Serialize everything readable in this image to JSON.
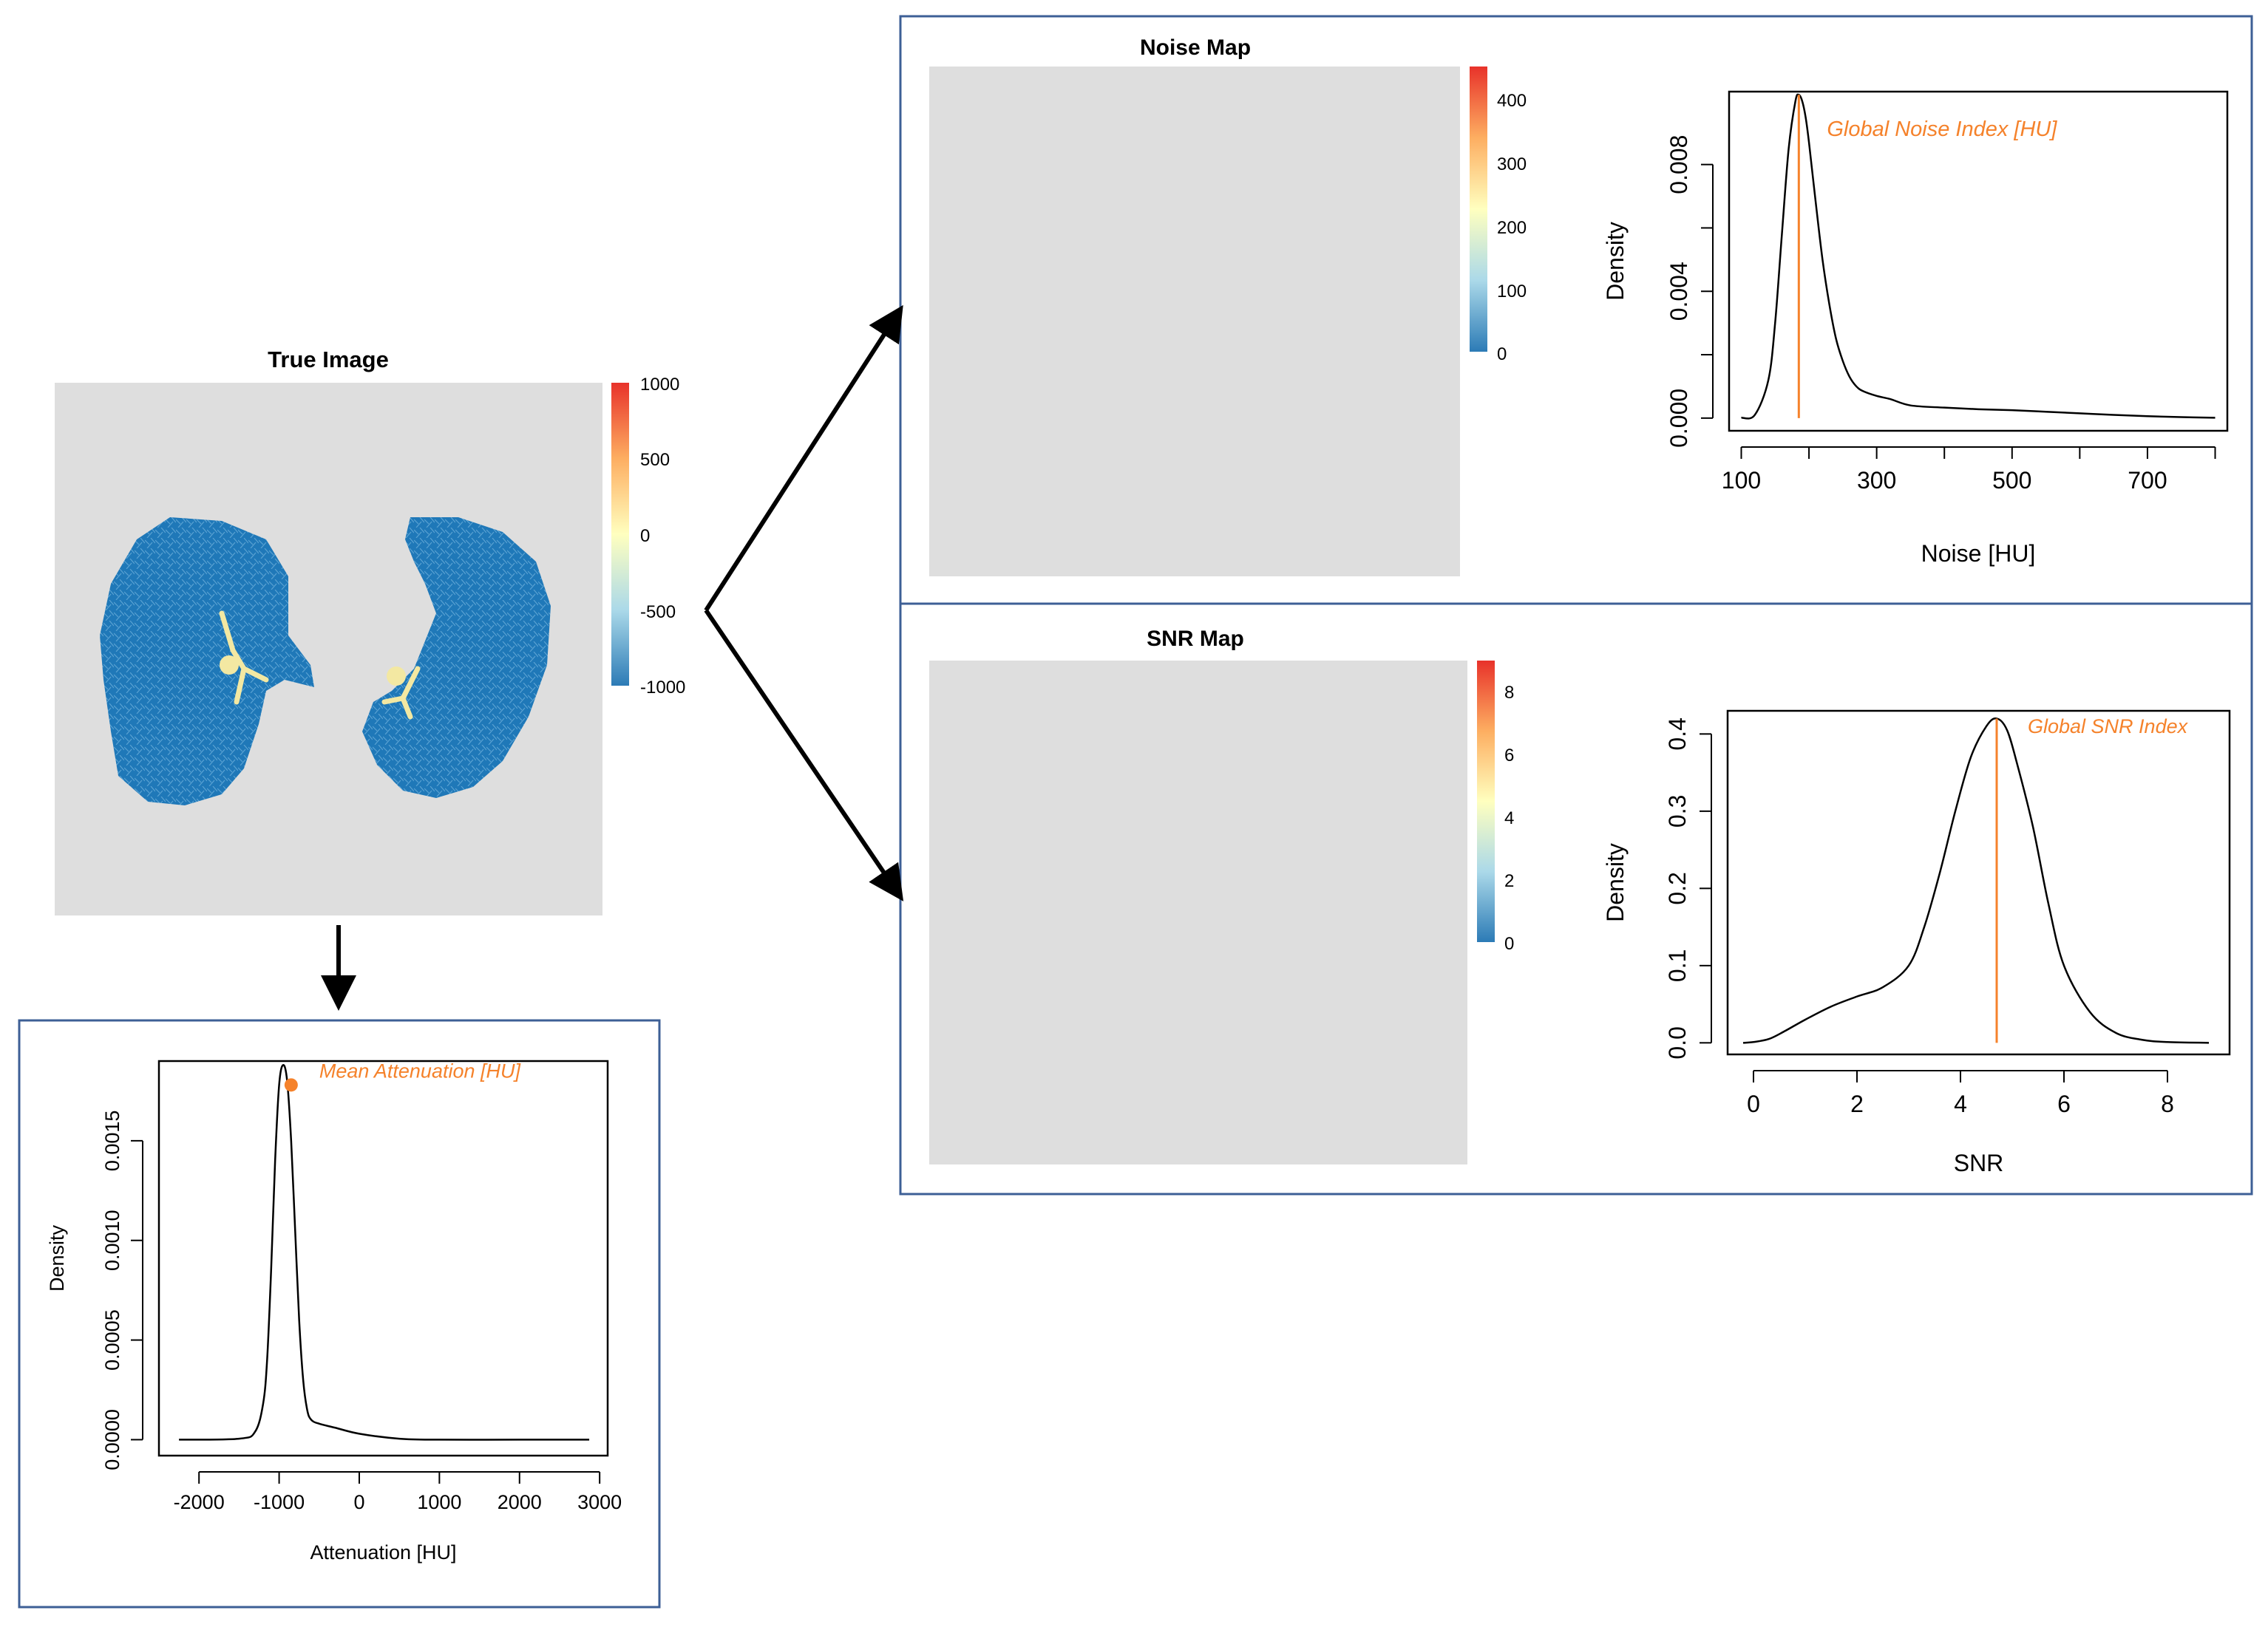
{
  "colors": {
    "accent": "#f5822b",
    "frame": "#3d5f96",
    "map_background": "#dedede",
    "lung_blue": "#1f78b8"
  },
  "true_image": {
    "title": "True Image",
    "colorbar_ticks": [
      "1000",
      "500",
      "0",
      "-500",
      "-1000"
    ]
  },
  "noise_map": {
    "title": "Noise Map",
    "colorbar_ticks": [
      "400",
      "300",
      "200",
      "100",
      "0"
    ]
  },
  "snr_map": {
    "title": "SNR Map",
    "colorbar_ticks": [
      "8",
      "6",
      "4",
      "2",
      "0"
    ]
  },
  "chart_data": [
    {
      "id": "noise",
      "type": "line",
      "title": "",
      "xlabel": "Noise [HU]",
      "ylabel": "Density",
      "xlim": [
        82,
        818
      ],
      "ylim": [
        -0.0004,
        0.0103
      ],
      "x_ticks": [
        100,
        200,
        300,
        400,
        500,
        600,
        700,
        800
      ],
      "x_tick_labels": [
        "100",
        "",
        "300",
        "",
        "500",
        "",
        "700",
        ""
      ],
      "y_ticks": [
        0,
        0.002,
        0.004,
        0.006,
        0.008
      ],
      "y_tick_labels": [
        "0.000",
        "",
        "0.004",
        "",
        "0.008"
      ],
      "x": [
        100,
        120,
        140,
        150,
        160,
        170,
        180,
        185,
        190,
        195,
        200,
        210,
        220,
        230,
        240,
        250,
        260,
        270,
        280,
        300,
        320,
        350,
        400,
        450,
        500,
        550,
        600,
        650,
        700,
        750,
        800
      ],
      "y": [
        1e-05,
        0.0001,
        0.0012,
        0.003,
        0.0058,
        0.0085,
        0.01,
        0.0102,
        0.01,
        0.0095,
        0.0087,
        0.0068,
        0.005,
        0.0036,
        0.0025,
        0.0018,
        0.0013,
        0.001,
        0.00085,
        0.0007,
        0.0006,
        0.0004,
        0.00033,
        0.00028,
        0.00025,
        0.0002,
        0.00015,
        0.0001,
        6e-05,
        3e-05,
        1e-05
      ],
      "marker": {
        "kind": "vline",
        "x": 185,
        "label": "Global Noise Index [HU]"
      }
    },
    {
      "id": "snr",
      "type": "line",
      "title": "",
      "xlabel": "SNR",
      "ylabel": "Density",
      "xlim": [
        -0.5,
        9.2
      ],
      "ylim": [
        -0.015,
        0.43
      ],
      "x_ticks": [
        0,
        2,
        4,
        6,
        8
      ],
      "x_tick_labels": [
        "0",
        "2",
        "4",
        "6",
        "8"
      ],
      "y_ticks": [
        0,
        0.1,
        0.2,
        0.3,
        0.4
      ],
      "y_tick_labels": [
        "0.0",
        "0.1",
        "0.2",
        "0.3",
        "0.4"
      ],
      "x": [
        -0.2,
        0,
        0.3,
        0.6,
        1.0,
        1.5,
        2.0,
        2.5,
        3.0,
        3.3,
        3.6,
        3.9,
        4.2,
        4.5,
        4.7,
        4.9,
        5.1,
        5.4,
        5.7,
        6.0,
        6.5,
        7.0,
        7.5,
        8.0,
        8.8
      ],
      "y": [
        0.0,
        0.001,
        0.005,
        0.015,
        0.03,
        0.047,
        0.06,
        0.072,
        0.1,
        0.15,
        0.22,
        0.3,
        0.37,
        0.41,
        0.42,
        0.405,
        0.36,
        0.28,
        0.18,
        0.1,
        0.04,
        0.013,
        0.004,
        0.001,
        0.0
      ],
      "marker": {
        "kind": "vline",
        "x": 4.7,
        "label": "Global SNR Index"
      }
    },
    {
      "id": "attenuation",
      "type": "line",
      "title": "",
      "xlabel": "Attenuation [HU]",
      "ylabel": "Density",
      "xlim": [
        -2500,
        3100
      ],
      "ylim": [
        -8e-05,
        0.0019
      ],
      "x_ticks": [
        -2000,
        -1000,
        0,
        1000,
        2000,
        3000
      ],
      "x_tick_labels": [
        "-2000",
        "-1000",
        "0",
        "1000",
        "2000",
        "3000"
      ],
      "y_ticks": [
        0,
        0.0005,
        0.001,
        0.0015
      ],
      "y_tick_labels": [
        "0.0000",
        "0.0005",
        "0.0010",
        "0.0015"
      ],
      "x": [
        -2250,
        -1500,
        -1300,
        -1200,
        -1150,
        -1100,
        -1050,
        -1000,
        -950,
        -900,
        -850,
        -800,
        -750,
        -700,
        -650,
        -600,
        -500,
        -300,
        0,
        500,
        1000,
        2000,
        2870
      ],
      "y": [
        0.0,
        5e-06,
        4e-05,
        0.00018,
        0.0004,
        0.00085,
        0.0014,
        0.00178,
        0.00188,
        0.0018,
        0.0015,
        0.00105,
        0.0006,
        0.0003,
        0.00015,
        0.0001,
        8e-05,
        6e-05,
        3e-05,
        5e-06,
        0.0,
        0.0,
        0.0
      ],
      "marker": {
        "kind": "point",
        "x": -850,
        "y": 0.00178,
        "label": "Mean Attenuation [HU]"
      }
    }
  ]
}
